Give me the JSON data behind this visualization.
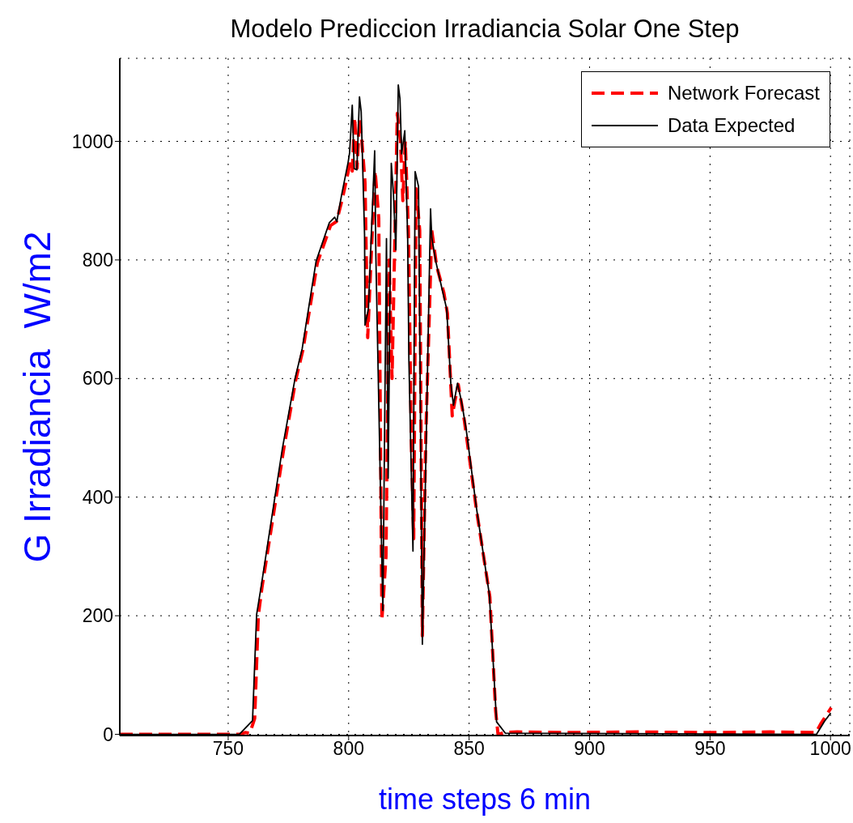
{
  "chart_data": {
    "type": "line",
    "title": "Modelo Prediccion Irradiancia Solar One Step",
    "xlabel": "time steps 6 min",
    "ylabel": "G Irradiancia  W/m2",
    "xlim": [
      705,
      1008
    ],
    "xticks": [
      750,
      800,
      850,
      900,
      950,
      1000
    ],
    "ylim": [
      -2,
      1140
    ],
    "yticks": [
      0,
      200,
      400,
      600,
      800,
      1000
    ],
    "grid": true,
    "legend": "top right",
    "marker": "none",
    "series": [
      {
        "name": "Network Forecast",
        "color": "#ff0000",
        "line_style": "dashed",
        "x": [
          705,
          755,
          757,
          759,
          761,
          762.5,
          764,
          773,
          778,
          781,
          787,
          792.5,
          795,
          797.5,
          800.5,
          801.5,
          802.5,
          803.5,
          804.5,
          805.5,
          806.8,
          807.9,
          809.5,
          811,
          812.5,
          813.8,
          815.5,
          816.8,
          818,
          819,
          820.2,
          821.5,
          822.5,
          823.5,
          824.8,
          826,
          827,
          828,
          829.5,
          830.6,
          832,
          834.5,
          836.5,
          839.5,
          841,
          843,
          844,
          845.5,
          848,
          853,
          858.6,
          861,
          862,
          865,
          870,
          890,
          920,
          950,
          975,
          994,
          996,
          1000.3
        ],
        "values": [
          0,
          0,
          3,
          2,
          27,
          200,
          247,
          480,
          597,
          648,
          795,
          858,
          865,
          905,
          962,
          950,
          1040,
          955,
          1038,
          1000,
          930,
          669,
          820,
          950,
          870,
          193,
          300,
          800,
          600,
          800,
          1047,
          1000,
          900,
          1000,
          850,
          500,
          330,
          920,
          850,
          166,
          500,
          850,
          790,
          745,
          710,
          537,
          560,
          590,
          530,
          380,
          232,
          40,
          0,
          3,
          4,
          3,
          4,
          3,
          4,
          3,
          18,
          45
        ]
      },
      {
        "name": "Data Expected",
        "color": "#000000",
        "line_style": "solid",
        "x": [
          705,
          754.6,
          760.1,
          761.8,
          763.6,
          772.5,
          777.7,
          780.7,
          786.5,
          792,
          794.2,
          795.1,
          797,
          799.8,
          800.4,
          801.5,
          802.3,
          803.4,
          804.5,
          805.2,
          806.6,
          806.8,
          808.2,
          810.8,
          811.3,
          814.2,
          815.7,
          816.4,
          817.7,
          818.6,
          819.6,
          820.6,
          821.3,
          822,
          823.3,
          824.5,
          825,
          826.7,
          827.6,
          829,
          829.5,
          830.6,
          834,
          834.5,
          836.2,
          839,
          840.7,
          842.4,
          843.5,
          845.2,
          846.9,
          848.8,
          853,
          858.4,
          861.4,
          865,
          994.2,
          997.5,
          1000.1
        ],
        "values": [
          0,
          0,
          23,
          202,
          247,
          482,
          599,
          650,
          798,
          863,
          872,
          865,
          908,
          965,
          981,
          1061,
          954,
          952,
          1075,
          1050,
          843,
          690,
          717,
          984,
          806,
          209,
          836,
          432,
          963,
          911,
          817,
          1095,
          1072,
          979,
          1018,
          838,
          633,
          309,
          949,
          924,
          688,
          152,
          886,
          838,
          797,
          747,
          717,
          592,
          555,
          592,
          560,
          514,
          383,
          236,
          21,
          2,
          0,
          22,
          36
        ]
      }
    ]
  }
}
